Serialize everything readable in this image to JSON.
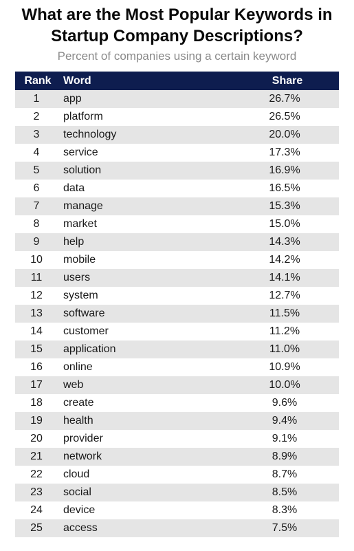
{
  "title_line1": "What are the Most Popular Keywords in",
  "title_line2": "Startup Company Descriptions?",
  "subtitle": "Percent of companies using a certain keyword",
  "colors": {
    "header_bg": "#0e1d4f",
    "stripe": "#e5e5e5"
  },
  "chart_data": {
    "type": "table",
    "columns": [
      "Rank",
      "Word",
      "Share"
    ],
    "rows": [
      [
        "1",
        "app",
        "26.7%"
      ],
      [
        "2",
        "platform",
        "26.5%"
      ],
      [
        "3",
        "technology",
        "20.0%"
      ],
      [
        "4",
        "service",
        "17.3%"
      ],
      [
        "5",
        "solution",
        "16.9%"
      ],
      [
        "6",
        "data",
        "16.5%"
      ],
      [
        "7",
        "manage",
        "15.3%"
      ],
      [
        "8",
        "market",
        "15.0%"
      ],
      [
        "9",
        "help",
        "14.3%"
      ],
      [
        "10",
        "mobile",
        "14.2%"
      ],
      [
        "11",
        "users",
        "14.1%"
      ],
      [
        "12",
        "system",
        "12.7%"
      ],
      [
        "13",
        "software",
        "11.5%"
      ],
      [
        "14",
        "customer",
        "11.2%"
      ],
      [
        "15",
        "application",
        "11.0%"
      ],
      [
        "16",
        "online",
        "10.9%"
      ],
      [
        "17",
        "web",
        "10.0%"
      ],
      [
        "18",
        "create",
        "9.6%"
      ],
      [
        "19",
        "health",
        "9.4%"
      ],
      [
        "20",
        "provider",
        "9.1%"
      ],
      [
        "21",
        "network",
        "8.9%"
      ],
      [
        "22",
        "cloud",
        "8.7%"
      ],
      [
        "23",
        "social",
        "8.5%"
      ],
      [
        "24",
        "device",
        "8.3%"
      ],
      [
        "25",
        "access",
        "7.5%"
      ]
    ]
  }
}
